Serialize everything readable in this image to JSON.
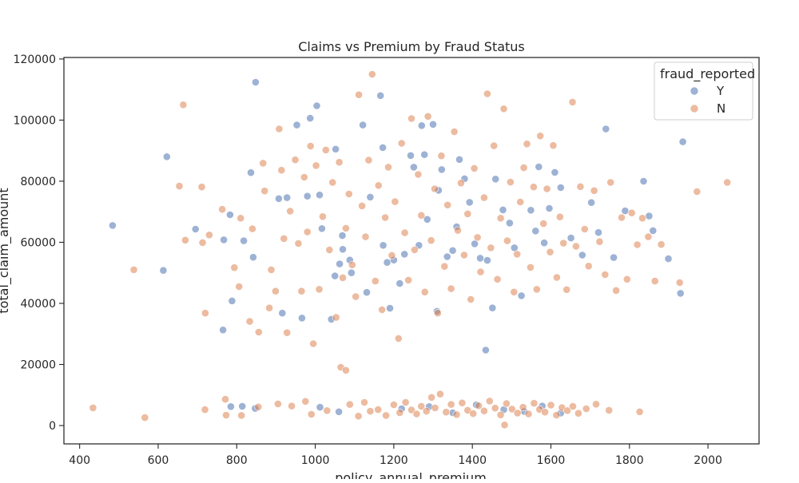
{
  "chart_data": {
    "type": "scatter",
    "title": "Claims vs Premium by Fraud Status",
    "xlabel": "policy_annual_premium",
    "ylabel": "total_claim_amount",
    "xlim": [
      360,
      2130
    ],
    "ylim": [
      -6000,
      120500
    ],
    "xticks": [
      400,
      600,
      800,
      1000,
      1200,
      1400,
      1600,
      1800,
      2000
    ],
    "yticks": [
      0,
      20000,
      40000,
      60000,
      80000,
      100000,
      120000
    ],
    "grid": false,
    "legend": {
      "title": "fraud_reported",
      "placement": "top-right"
    },
    "series": [
      {
        "name": "Y",
        "color": "#4c72b0",
        "points": [
          [
            484,
            65500
          ],
          [
            622,
            88000
          ],
          [
            613,
            50800
          ],
          [
            695,
            64300
          ],
          [
            765,
            31300
          ],
          [
            767,
            60800
          ],
          [
            783,
            69000
          ],
          [
            788,
            40800
          ],
          [
            785,
            6200
          ],
          [
            814,
            6300
          ],
          [
            818,
            60500
          ],
          [
            836,
            82800
          ],
          [
            848,
            112400
          ],
          [
            842,
            55100
          ],
          [
            847,
            5600
          ],
          [
            907,
            74300
          ],
          [
            916,
            36800
          ],
          [
            928,
            74600
          ],
          [
            953,
            98400
          ],
          [
            966,
            35200
          ],
          [
            980,
            75100
          ],
          [
            987,
            100600
          ],
          [
            1004,
            104700
          ],
          [
            1011,
            75500
          ],
          [
            1017,
            64500
          ],
          [
            1041,
            34800
          ],
          [
            1050,
            49000
          ],
          [
            1052,
            90500
          ],
          [
            1062,
            52900
          ],
          [
            1069,
            62200
          ],
          [
            1070,
            57700
          ],
          [
            1088,
            54200
          ],
          [
            1092,
            50000
          ],
          [
            1121,
            98400
          ],
          [
            1131,
            43600
          ],
          [
            1140,
            74800
          ],
          [
            1166,
            108000
          ],
          [
            1172,
            91000
          ],
          [
            1173,
            59000
          ],
          [
            1183,
            53400
          ],
          [
            1190,
            38400
          ],
          [
            1200,
            54200
          ],
          [
            1215,
            46500
          ],
          [
            1227,
            56100
          ],
          [
            1243,
            88400
          ],
          [
            1251,
            84600
          ],
          [
            1264,
            59000
          ],
          [
            1271,
            98200
          ],
          [
            1278,
            88700
          ],
          [
            1285,
            67500
          ],
          [
            1300,
            98600
          ],
          [
            1310,
            37400
          ],
          [
            1314,
            77000
          ],
          [
            1322,
            83800
          ],
          [
            1336,
            55300
          ],
          [
            1350,
            57300
          ],
          [
            1360,
            65100
          ],
          [
            1367,
            87100
          ],
          [
            1380,
            80800
          ],
          [
            1393,
            73100
          ],
          [
            1406,
            59500
          ],
          [
            1420,
            54800
          ],
          [
            1434,
            24700
          ],
          [
            1438,
            54100
          ],
          [
            1451,
            38500
          ],
          [
            1459,
            80700
          ],
          [
            1478,
            70600
          ],
          [
            1495,
            66300
          ],
          [
            1507,
            58200
          ],
          [
            1525,
            42500
          ],
          [
            1532,
            4600
          ],
          [
            1549,
            70500
          ],
          [
            1561,
            63700
          ],
          [
            1569,
            84700
          ],
          [
            1583,
            59800
          ],
          [
            1596,
            71100
          ],
          [
            1610,
            82900
          ],
          [
            1625,
            77900
          ],
          [
            1651,
            61400
          ],
          [
            1680,
            55800
          ],
          [
            1703,
            73000
          ],
          [
            1721,
            63200
          ],
          [
            1740,
            97100
          ],
          [
            1760,
            55000
          ],
          [
            1789,
            70300
          ],
          [
            1836,
            80000
          ],
          [
            1850,
            68600
          ],
          [
            1860,
            63800
          ],
          [
            1899,
            54600
          ],
          [
            1930,
            43300
          ],
          [
            1936,
            92900
          ],
          [
            1012,
            6000
          ],
          [
            1060,
            4500
          ],
          [
            1220,
            5500
          ],
          [
            1290,
            6200
          ],
          [
            1350,
            4200
          ],
          [
            1410,
            6800
          ],
          [
            1480,
            5200
          ],
          [
            1578,
            6400
          ],
          [
            1625,
            4100
          ]
        ]
      },
      {
        "name": "N",
        "color": "#dd8452",
        "points": [
          [
            434,
            5800
          ],
          [
            538,
            51000
          ],
          [
            566,
            2600
          ],
          [
            654,
            78400
          ],
          [
            664,
            105000
          ],
          [
            669,
            60700
          ],
          [
            711,
            78100
          ],
          [
            713,
            59900
          ],
          [
            730,
            62400
          ],
          [
            720,
            36800
          ],
          [
            719,
            5200
          ],
          [
            763,
            70800
          ],
          [
            771,
            8600
          ],
          [
            773,
            3400
          ],
          [
            794,
            51700
          ],
          [
            806,
            45500
          ],
          [
            810,
            67900
          ],
          [
            833,
            34100
          ],
          [
            840,
            64400
          ],
          [
            856,
            30600
          ],
          [
            867,
            85900
          ],
          [
            871,
            76800
          ],
          [
            883,
            38500
          ],
          [
            888,
            51000
          ],
          [
            899,
            44000
          ],
          [
            908,
            97100
          ],
          [
            914,
            83600
          ],
          [
            920,
            61200
          ],
          [
            928,
            30400
          ],
          [
            936,
            70200
          ],
          [
            949,
            87000
          ],
          [
            957,
            59600
          ],
          [
            965,
            44000
          ],
          [
            972,
            81300
          ],
          [
            980,
            63400
          ],
          [
            988,
            91500
          ],
          [
            995,
            26800
          ],
          [
            1002,
            85100
          ],
          [
            1010,
            44600
          ],
          [
            1019,
            68400
          ],
          [
            1027,
            90200
          ],
          [
            1036,
            57500
          ],
          [
            1044,
            79600
          ],
          [
            1053,
            35400
          ],
          [
            1061,
            86200
          ],
          [
            1070,
            48400
          ],
          [
            1078,
            64600
          ],
          [
            1086,
            75800
          ],
          [
            1094,
            52600
          ],
          [
            1103,
            42200
          ],
          [
            1111,
            108300
          ],
          [
            1119,
            71900
          ],
          [
            1128,
            61800
          ],
          [
            1136,
            86900
          ],
          [
            1145,
            115000
          ],
          [
            1153,
            47300
          ],
          [
            1161,
            78600
          ],
          [
            1170,
            37900
          ],
          [
            1178,
            68100
          ],
          [
            1186,
            84600
          ],
          [
            1195,
            55700
          ],
          [
            1203,
            73300
          ],
          [
            1212,
            28500
          ],
          [
            1220,
            92400
          ],
          [
            1228,
            63100
          ],
          [
            1237,
            47600
          ],
          [
            1245,
            100500
          ],
          [
            1253,
            57500
          ],
          [
            1262,
            82200
          ],
          [
            1270,
            68800
          ],
          [
            1279,
            43700
          ],
          [
            1287,
            101200
          ],
          [
            1295,
            60600
          ],
          [
            1304,
            77500
          ],
          [
            1312,
            36800
          ],
          [
            1321,
            88300
          ],
          [
            1329,
            52100
          ],
          [
            1337,
            72200
          ],
          [
            1346,
            44800
          ],
          [
            1354,
            96200
          ],
          [
            1363,
            63900
          ],
          [
            1371,
            79400
          ],
          [
            1379,
            55800
          ],
          [
            1388,
            69300
          ],
          [
            1396,
            41300
          ],
          [
            1405,
            84200
          ],
          [
            1413,
            61600
          ],
          [
            1421,
            50300
          ],
          [
            1430,
            74600
          ],
          [
            1438,
            108600
          ],
          [
            1447,
            58200
          ],
          [
            1455,
            91600
          ],
          [
            1464,
            47900
          ],
          [
            1472,
            67900
          ],
          [
            1480,
            103700
          ],
          [
            1489,
            60500
          ],
          [
            1497,
            79700
          ],
          [
            1506,
            43700
          ],
          [
            1514,
            56100
          ],
          [
            1522,
            73200
          ],
          [
            1531,
            84400
          ],
          [
            1539,
            92200
          ],
          [
            1548,
            51800
          ],
          [
            1556,
            78100
          ],
          [
            1564,
            44600
          ],
          [
            1573,
            94800
          ],
          [
            1581,
            66100
          ],
          [
            1590,
            77500
          ],
          [
            1598,
            56800
          ],
          [
            1606,
            91700
          ],
          [
            1615,
            48500
          ],
          [
            1623,
            68300
          ],
          [
            1632,
            59700
          ],
          [
            1640,
            44500
          ],
          [
            1655,
            105900
          ],
          [
            1664,
            58700
          ],
          [
            1675,
            78200
          ],
          [
            1686,
            64300
          ],
          [
            1696,
            52200
          ],
          [
            1710,
            76900
          ],
          [
            1724,
            60200
          ],
          [
            1738,
            49400
          ],
          [
            1752,
            79600
          ],
          [
            1766,
            44200
          ],
          [
            1780,
            68100
          ],
          [
            1794,
            47900
          ],
          [
            1806,
            69600
          ],
          [
            1820,
            59200
          ],
          [
            1833,
            67900
          ],
          [
            1848,
            61800
          ],
          [
            1865,
            47300
          ],
          [
            1881,
            59300
          ],
          [
            1928,
            46800
          ],
          [
            1972,
            76600
          ],
          [
            2049,
            79600
          ],
          [
            1065,
            19100
          ],
          [
            1078,
            18100
          ],
          [
            1160,
            5200
          ],
          [
            1180,
            3300
          ],
          [
            1200,
            6800
          ],
          [
            1215,
            4200
          ],
          [
            1230,
            7600
          ],
          [
            1245,
            5100
          ],
          [
            1258,
            3800
          ],
          [
            1270,
            6300
          ],
          [
            1283,
            4700
          ],
          [
            1296,
            9200
          ],
          [
            1305,
            5800
          ],
          [
            1318,
            10300
          ],
          [
            1333,
            4400
          ],
          [
            1346,
            6900
          ],
          [
            1360,
            3600
          ],
          [
            1374,
            7400
          ],
          [
            1388,
            5000
          ],
          [
            1402,
            3900
          ],
          [
            1416,
            6500
          ],
          [
            1430,
            4800
          ],
          [
            1444,
            8000
          ],
          [
            1458,
            5700
          ],
          [
            1472,
            3500
          ],
          [
            1487,
            7200
          ],
          [
            1501,
            5400
          ],
          [
            1515,
            4100
          ],
          [
            1529,
            6000
          ],
          [
            1543,
            3800
          ],
          [
            1557,
            7300
          ],
          [
            1571,
            5300
          ],
          [
            1585,
            4400
          ],
          [
            1600,
            6700
          ],
          [
            1614,
            3400
          ],
          [
            1628,
            5900
          ],
          [
            1642,
            4900
          ],
          [
            1656,
            6300
          ],
          [
            1670,
            4000
          ],
          [
            1690,
            5500
          ],
          [
            1715,
            7000
          ],
          [
            1748,
            5000
          ],
          [
            1826,
            4500
          ],
          [
            1482,
            200
          ],
          [
            812,
            3300
          ],
          [
            855,
            6100
          ],
          [
            905,
            7100
          ],
          [
            940,
            6400
          ],
          [
            975,
            7900
          ],
          [
            990,
            3700
          ],
          [
            1030,
            4900
          ],
          [
            1088,
            6900
          ],
          [
            1110,
            3100
          ],
          [
            1125,
            7600
          ],
          [
            1140,
            4700
          ]
        ]
      }
    ]
  }
}
